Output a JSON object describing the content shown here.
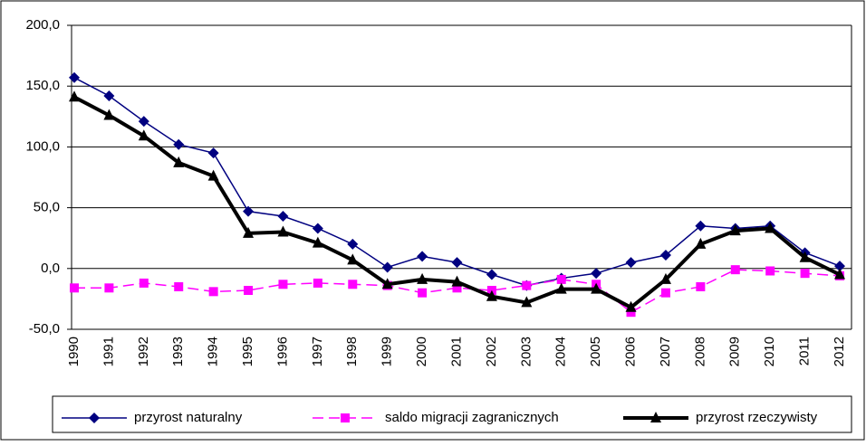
{
  "chart_data": {
    "type": "line",
    "categories": [
      "1990",
      "1991",
      "1992",
      "1993",
      "1994",
      "1995",
      "1996",
      "1997",
      "1998",
      "1999",
      "2000",
      "2001",
      "2002",
      "2003",
      "2004",
      "2005",
      "2006",
      "2007",
      "2008",
      "2009",
      "2010",
      "2011",
      "2012"
    ],
    "series": [
      {
        "name": "przyrost naturalny",
        "color": "#000080",
        "values": [
          157,
          142,
          121,
          102,
          95,
          47,
          43,
          33,
          20,
          1,
          10,
          5,
          -5,
          -14,
          -8,
          -4,
          5,
          11,
          35,
          33,
          35,
          13,
          2
        ]
      },
      {
        "name": "saldo migracji zagranicznych",
        "color": "#ff00ff",
        "values": [
          -16,
          -16,
          -12,
          -15,
          -19,
          -18,
          -13,
          -12,
          -13,
          -14,
          -20,
          -16,
          -18,
          -14,
          -9,
          -13,
          -36,
          -20,
          -15,
          -1,
          -2,
          -4,
          -6
        ]
      },
      {
        "name": "przyrost rzeczywisty",
        "color": "#000000",
        "values": [
          141,
          126,
          109,
          87,
          76,
          29,
          30,
          21,
          7,
          -13,
          -9,
          -11,
          -23,
          -28,
          -17,
          -17,
          -32,
          -9,
          20,
          31,
          33,
          9,
          -5
        ]
      }
    ],
    "ylim": [
      -50,
      200
    ],
    "yticks": [
      {
        "value": -50,
        "label": "-50,0"
      },
      {
        "value": 0,
        "label": "0,0"
      },
      {
        "value": 50,
        "label": "50,0"
      },
      {
        "value": 100,
        "label": "100,0"
      },
      {
        "value": 150,
        "label": "150,0"
      },
      {
        "value": 200,
        "label": "200,0"
      }
    ],
    "grid": true,
    "legend": "bottom"
  }
}
